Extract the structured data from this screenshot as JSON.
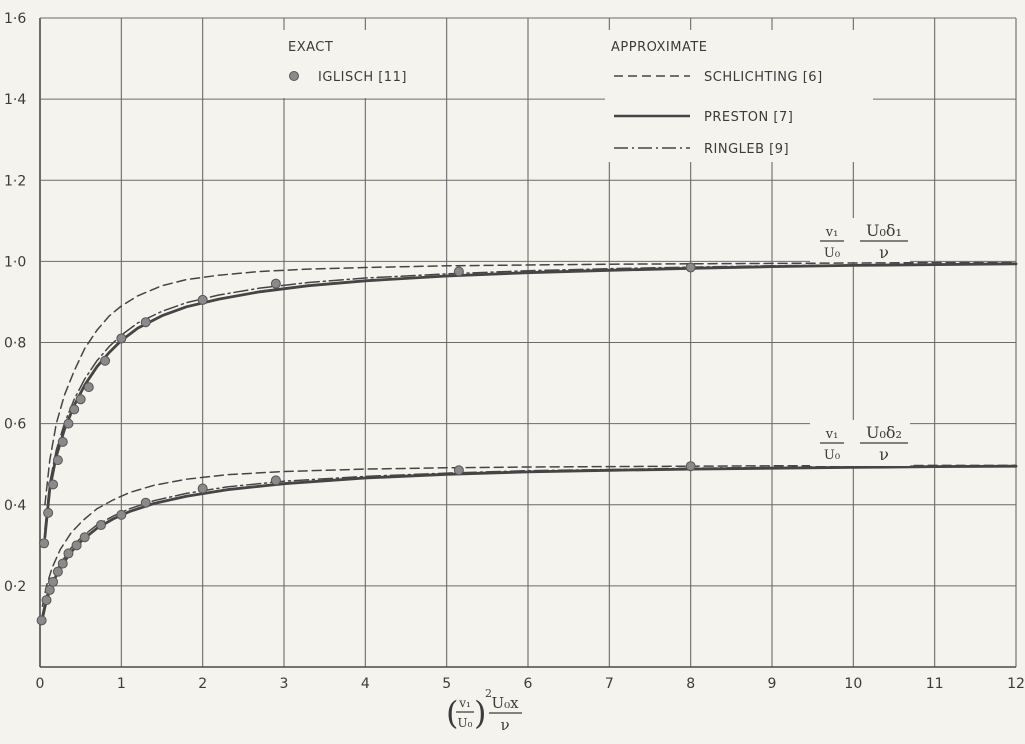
{
  "chart_data": {
    "type": "line",
    "xlim": [
      0,
      12
    ],
    "ylim": [
      0,
      1.6
    ],
    "grid": true,
    "x_ticks": [
      {
        "value": 0,
        "label": "0"
      },
      {
        "value": 1,
        "label": "1"
      },
      {
        "value": 2,
        "label": "2"
      },
      {
        "value": 3,
        "label": "3"
      },
      {
        "value": 4,
        "label": "4"
      },
      {
        "value": 5,
        "label": "5"
      },
      {
        "value": 6,
        "label": "6"
      },
      {
        "value": 7,
        "label": "7"
      },
      {
        "value": 8,
        "label": "8"
      },
      {
        "value": 9,
        "label": "9"
      },
      {
        "value": 10,
        "label": "10"
      },
      {
        "value": 11,
        "label": "11"
      },
      {
        "value": 12,
        "label": "12"
      }
    ],
    "y_ticks": [
      {
        "value": 0.2,
        "label": "0·2"
      },
      {
        "value": 0.4,
        "label": "0·4"
      },
      {
        "value": 0.6,
        "label": "0·6"
      },
      {
        "value": 0.8,
        "label": "0·8"
      },
      {
        "value": 1.0,
        "label": "1·0"
      },
      {
        "value": 1.2,
        "label": "1·2"
      },
      {
        "value": 1.4,
        "label": "1·4"
      },
      {
        "value": 1.6,
        "label": "1·6"
      }
    ],
    "legend": {
      "exact_header": "EXACT",
      "approx_header": "APPROXIMATE",
      "exact_entry": "IGLISCH [11]",
      "approx_entries": [
        {
          "label": "SCHLICHTING [6]",
          "style": "dashed"
        },
        {
          "label": "PRESTON [7]",
          "style": "solid"
        },
        {
          "label": "RINGLEB [9]",
          "style": "dashdot"
        }
      ]
    },
    "curve_labels": {
      "upper": {
        "ratio_num": "v₁",
        "ratio_den": "U₀",
        "frac_num": "U₀δ₁",
        "frac_den": "ν"
      },
      "lower": {
        "ratio_num": "v₁",
        "ratio_den": "U₀",
        "frac_num": "U₀δ₂",
        "frac_den": "ν"
      }
    },
    "x_label": {
      "inner_num": "v₁",
      "inner_den": "U₀",
      "exp": "2",
      "frac_num": "U₀x",
      "frac_den": "ν"
    },
    "series": [
      {
        "name": "IGLISCH [11]",
        "group": "upper",
        "style": "points",
        "x": [
          0.1,
          0.16,
          0.22,
          0.28,
          0.35,
          0.42,
          0.5,
          0.6,
          0.8,
          1.0,
          1.3,
          2.0,
          2.9,
          5.15,
          8.0
        ],
        "y": [
          0.38,
          0.45,
          0.51,
          0.555,
          0.6,
          0.635,
          0.66,
          0.69,
          0.755,
          0.81,
          0.85,
          0.905,
          0.945,
          0.975,
          0.985
        ]
      },
      {
        "name": "SCHLICHTING [6]",
        "group": "upper",
        "style": "dashed",
        "x": [
          0.06,
          0.12,
          0.2,
          0.3,
          0.42,
          0.55,
          0.7,
          0.85,
          1.0,
          1.2,
          1.5,
          1.8,
          2.2,
          2.7,
          3.3,
          4,
          5,
          6,
          7,
          8,
          9,
          10,
          11,
          12
        ],
        "y": [
          0.4,
          0.51,
          0.6,
          0.67,
          0.73,
          0.785,
          0.83,
          0.865,
          0.89,
          0.915,
          0.94,
          0.955,
          0.966,
          0.975,
          0.981,
          0.985,
          0.989,
          0.991,
          0.993,
          0.994,
          0.995,
          0.996,
          0.997,
          0.997
        ]
      },
      {
        "name": "PRESTON [7]",
        "group": "upper",
        "style": "solid",
        "x": [
          0.06,
          0.12,
          0.2,
          0.3,
          0.42,
          0.55,
          0.7,
          0.85,
          1.0,
          1.2,
          1.5,
          1.8,
          2.2,
          2.7,
          3.3,
          4,
          5,
          6,
          7,
          8,
          9,
          10,
          11,
          12
        ],
        "y": [
          0.32,
          0.44,
          0.52,
          0.585,
          0.645,
          0.695,
          0.74,
          0.775,
          0.805,
          0.835,
          0.866,
          0.888,
          0.907,
          0.925,
          0.94,
          0.952,
          0.964,
          0.972,
          0.978,
          0.983,
          0.987,
          0.99,
          0.992,
          0.994
        ]
      },
      {
        "name": "RINGLEB [9]",
        "group": "upper",
        "style": "dashdot",
        "x": [
          0.06,
          0.12,
          0.2,
          0.3,
          0.42,
          0.55,
          0.7,
          0.85,
          1.0,
          1.2,
          1.5,
          1.8,
          2.2,
          2.7,
          3.3,
          4,
          5,
          6,
          7,
          8,
          9,
          10,
          11,
          12
        ],
        "y": [
          0.34,
          0.455,
          0.535,
          0.6,
          0.66,
          0.71,
          0.755,
          0.79,
          0.818,
          0.848,
          0.877,
          0.898,
          0.917,
          0.934,
          0.948,
          0.959,
          0.969,
          0.977,
          0.982,
          0.986,
          0.989,
          0.991,
          0.993,
          0.995
        ]
      },
      {
        "name": "IGLISCH [11]",
        "group": "lower",
        "style": "points",
        "x": [
          0.02,
          0.05,
          0.08,
          0.12,
          0.16,
          0.22,
          0.28,
          0.35,
          0.45,
          0.55,
          0.75,
          1.0,
          1.3,
          2.0,
          2.9,
          5.15,
          8.0
        ],
        "y": [
          0.115,
          0.305,
          0.165,
          0.19,
          0.21,
          0.235,
          0.255,
          0.28,
          0.3,
          0.32,
          0.35,
          0.375,
          0.405,
          0.44,
          0.46,
          0.485,
          0.495
        ]
      },
      {
        "name": "SCHLICHTING [6]",
        "group": "lower",
        "style": "dashed",
        "x": [
          0.03,
          0.08,
          0.15,
          0.25,
          0.38,
          0.52,
          0.7,
          0.9,
          1.1,
          1.4,
          1.8,
          2.3,
          3.0,
          4,
          5,
          6,
          7,
          8,
          9,
          10,
          11,
          12
        ],
        "y": [
          0.15,
          0.2,
          0.245,
          0.29,
          0.33,
          0.36,
          0.39,
          0.412,
          0.43,
          0.448,
          0.463,
          0.474,
          0.482,
          0.488,
          0.491,
          0.493,
          0.494,
          0.495,
          0.496,
          0.496,
          0.497,
          0.497
        ]
      },
      {
        "name": "PRESTON [7]",
        "group": "lower",
        "style": "solid",
        "x": [
          0.03,
          0.08,
          0.15,
          0.25,
          0.38,
          0.52,
          0.7,
          0.9,
          1.1,
          1.4,
          1.8,
          2.3,
          3.0,
          4,
          5,
          6,
          7,
          8,
          9,
          10,
          11,
          12
        ],
        "y": [
          0.12,
          0.165,
          0.205,
          0.245,
          0.283,
          0.313,
          0.342,
          0.365,
          0.383,
          0.403,
          0.421,
          0.437,
          0.452,
          0.466,
          0.475,
          0.481,
          0.485,
          0.488,
          0.49,
          0.492,
          0.494,
          0.495
        ]
      },
      {
        "name": "RINGLEB [9]",
        "group": "lower",
        "style": "dashdot",
        "x": [
          0.03,
          0.08,
          0.15,
          0.25,
          0.38,
          0.52,
          0.7,
          0.9,
          1.1,
          1.4,
          1.8,
          2.3,
          3.0,
          4,
          5,
          6,
          7,
          8,
          9,
          10,
          11,
          12
        ],
        "y": [
          0.13,
          0.175,
          0.215,
          0.255,
          0.293,
          0.322,
          0.35,
          0.372,
          0.39,
          0.41,
          0.428,
          0.444,
          0.458,
          0.47,
          0.478,
          0.484,
          0.487,
          0.49,
          0.492,
          0.493,
          0.495,
          0.496
        ]
      }
    ]
  }
}
